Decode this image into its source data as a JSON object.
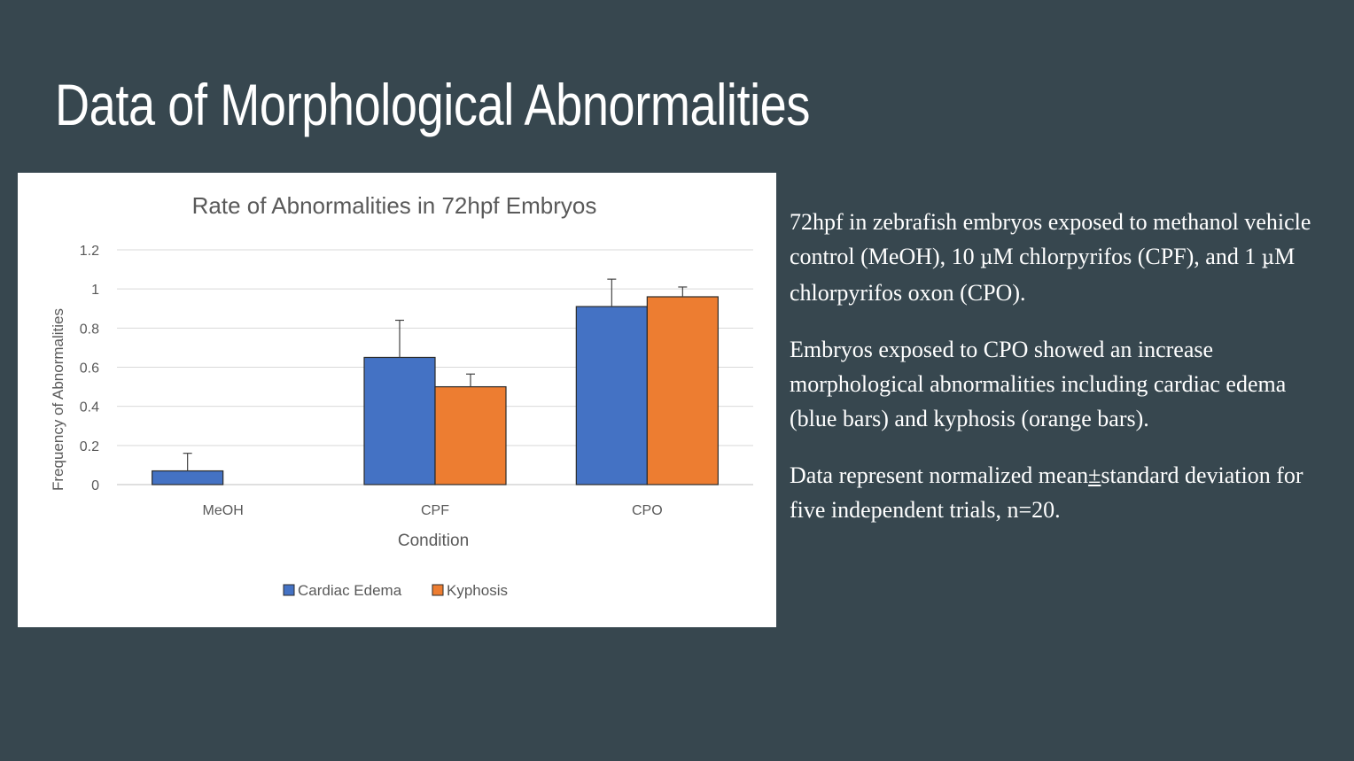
{
  "slide": {
    "title": "Data of Morphological Abnormalities",
    "paragraphs": [
      {
        "part1": "72hpf in zebrafish embryos exposed to methanol vehicle control (MeOH), 10 ",
        "mu": "µ",
        "part2": "M chlorpyrifos (CPF), and 1 ",
        "mu2": "µ",
        "part3": "M chlorpyrifos oxon (CPO)."
      },
      {
        "text": "Embryos exposed to CPO showed an  increase morphological abnormalities including cardiac edema (blue bars) and kyphosis (orange bars)."
      },
      {
        "part1": "Data represent normalized mean",
        "pm": "±",
        "part2": "standard deviation for five independent trials, n=20."
      }
    ]
  },
  "chart_data": {
    "type": "bar",
    "title": "Rate of Abnormalities in 72hpf Embryos",
    "xlabel": "Condition",
    "ylabel": "Frequency of Abnormalities",
    "categories": [
      "MeOH",
      "CPF",
      "CPO"
    ],
    "ylim": [
      0,
      1.2
    ],
    "yticks": [
      0,
      0.2,
      0.4,
      0.6,
      0.8,
      1,
      1.2
    ],
    "ytick_labels": [
      "0",
      "0.2",
      "0.4",
      "0.6",
      "0.8",
      "1",
      "1.2"
    ],
    "grid": true,
    "legend_position": "bottom",
    "series": [
      {
        "name": "Cardiac Edema",
        "color": "#4472c4",
        "values": [
          0.07,
          0.65,
          0.91
        ],
        "error": [
          0.09,
          0.19,
          0.14
        ]
      },
      {
        "name": "Kyphosis",
        "color": "#ed7d31",
        "values": [
          0,
          0.5,
          0.96
        ],
        "error": [
          0,
          0.065,
          0.05
        ]
      }
    ]
  }
}
